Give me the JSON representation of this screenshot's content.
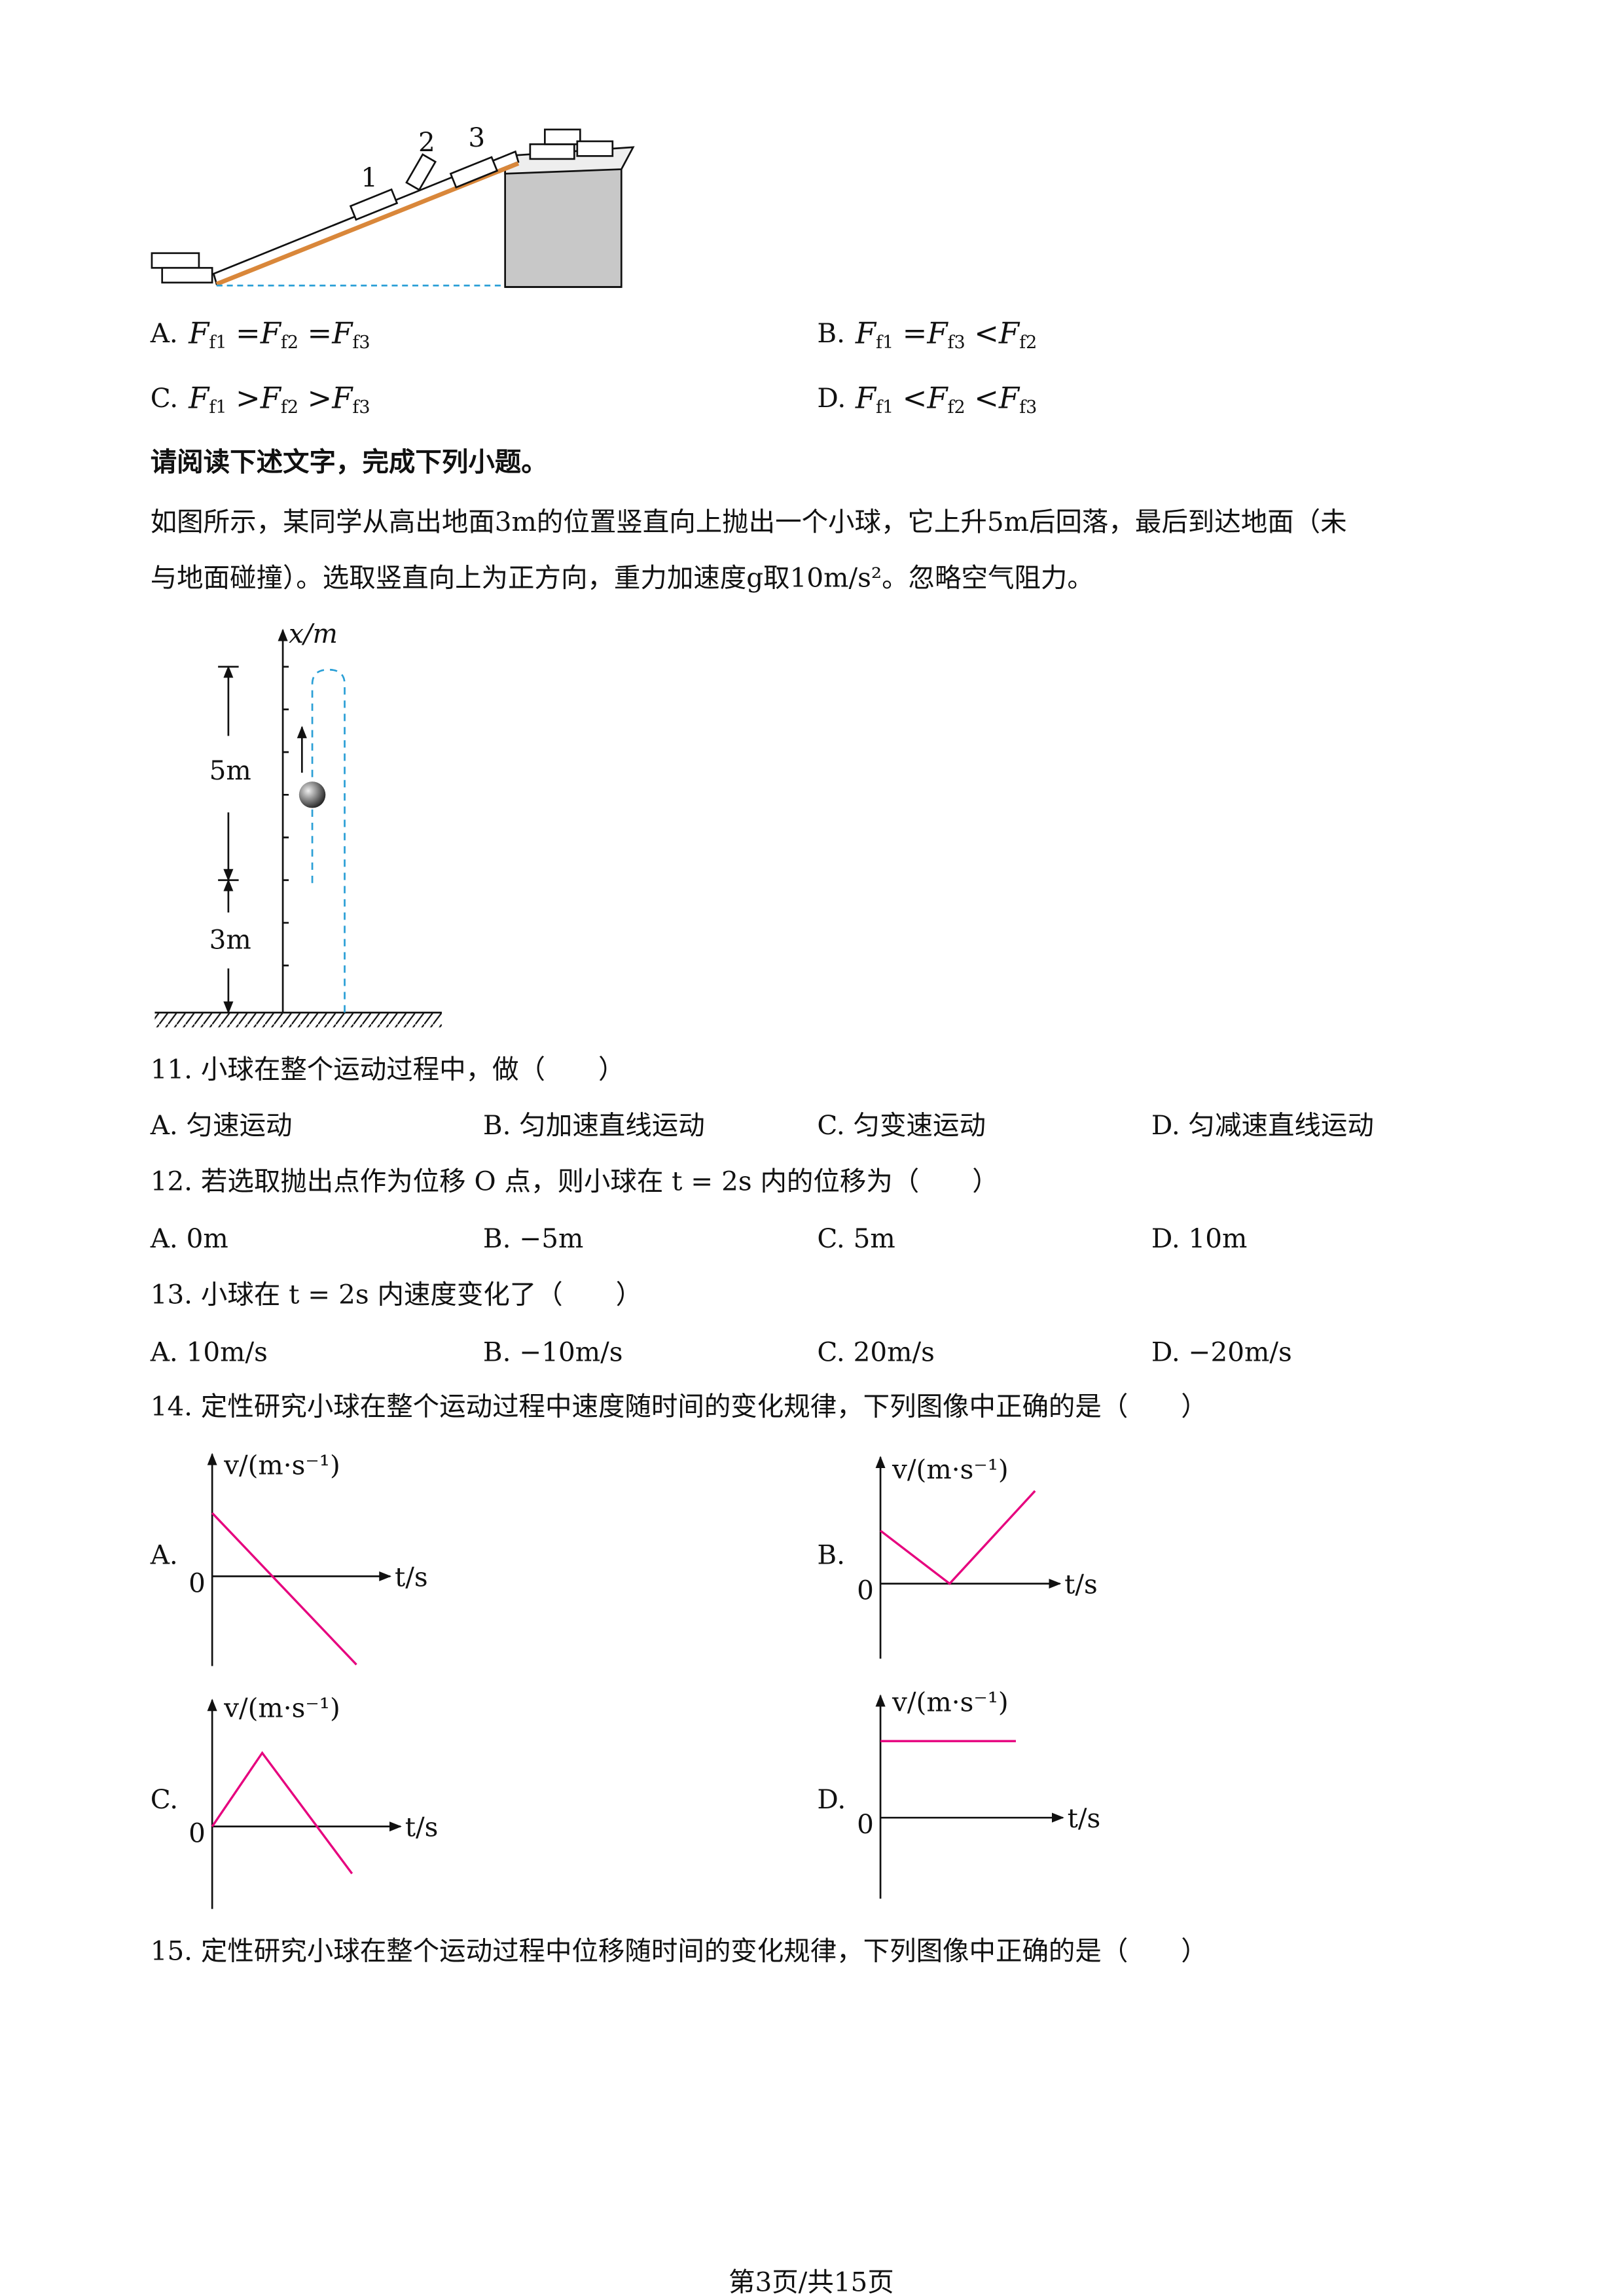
{
  "ramp_figure": {
    "labels": [
      "1",
      "2",
      "3"
    ]
  },
  "q10_options": [
    {
      "letter": "A.",
      "expr": [
        {
          "sym": "F",
          "sub": "f1"
        },
        "=",
        {
          "sym": "F",
          "sub": "f2"
        },
        "=",
        {
          "sym": "F",
          "sub": "f3"
        }
      ]
    },
    {
      "letter": "B.",
      "expr": [
        {
          "sym": "F",
          "sub": "f1"
        },
        "=",
        {
          "sym": "F",
          "sub": "f3"
        },
        "<",
        {
          "sym": "F",
          "sub": "f2"
        }
      ]
    },
    {
      "letter": "C.",
      "expr": [
        {
          "sym": "F",
          "sub": "f1"
        },
        ">",
        {
          "sym": "F",
          "sub": "f2"
        },
        ">",
        {
          "sym": "F",
          "sub": "f3"
        }
      ]
    },
    {
      "letter": "D.",
      "expr": [
        {
          "sym": "F",
          "sub": "f1"
        },
        "<",
        {
          "sym": "F",
          "sub": "f2"
        },
        "<",
        {
          "sym": "F",
          "sub": "f3"
        }
      ]
    }
  ],
  "section_heading": "请阅读下述文字，完成下列小题。",
  "paragraph": [
    "如图所示，某同学从高出地面3m的位置竖直向上抛出一个小球，它上升5m后回落，最后到达地面（未",
    "与地面碰撞）。选取竖直向上为正方向，重力加速度g取10m/s²。忽略空气阻力。"
  ],
  "ball_figure": {
    "axis_label": "x/m",
    "upper_height": "5m",
    "lower_height": "3m"
  },
  "questions": [
    {
      "stem": "11. 小球在整个运动过程中，做（　　）",
      "options": [
        "A. 匀速运动",
        "B. 匀加速直线运动",
        "C. 匀变速运动",
        "D. 匀减速直线运动"
      ]
    },
    {
      "stem": "12. 若选取抛出点作为位移 O 点，则小球在 t = 2s 内的位移为（　　）",
      "options": [
        "A. 0m",
        "B. −5m",
        "C. 5m",
        "D. 10m"
      ]
    },
    {
      "stem": "13. 小球在 t = 2s 内速度变化了（　　）",
      "options": [
        "A. 10m/s",
        "B. −10m/s",
        "C. 20m/s",
        "D. −20m/s"
      ]
    }
  ],
  "q14": {
    "stem": "14. 定性研究小球在整个运动过程中速度随时间的变化规律，下列图像中正确的是（　　）",
    "graphs": [
      {
        "letter": "A.",
        "y_label": "v/(m·s⁻¹)",
        "origin": "0",
        "x_label": "t/s"
      },
      {
        "letter": "B.",
        "y_label": "v/(m·s⁻¹)",
        "origin": "0",
        "x_label": "t/s"
      },
      {
        "letter": "C.",
        "y_label": "v/(m·s⁻¹)",
        "origin": "0",
        "x_label": "t/s"
      },
      {
        "letter": "D.",
        "y_label": "v/(m·s⁻¹)",
        "origin": "0",
        "x_label": "t/s"
      }
    ]
  },
  "q15": {
    "stem": "15. 定性研究小球在整个运动过程中位移随时间的变化规律，下列图像中正确的是（　　）"
  },
  "footer": "第3页/共15页"
}
